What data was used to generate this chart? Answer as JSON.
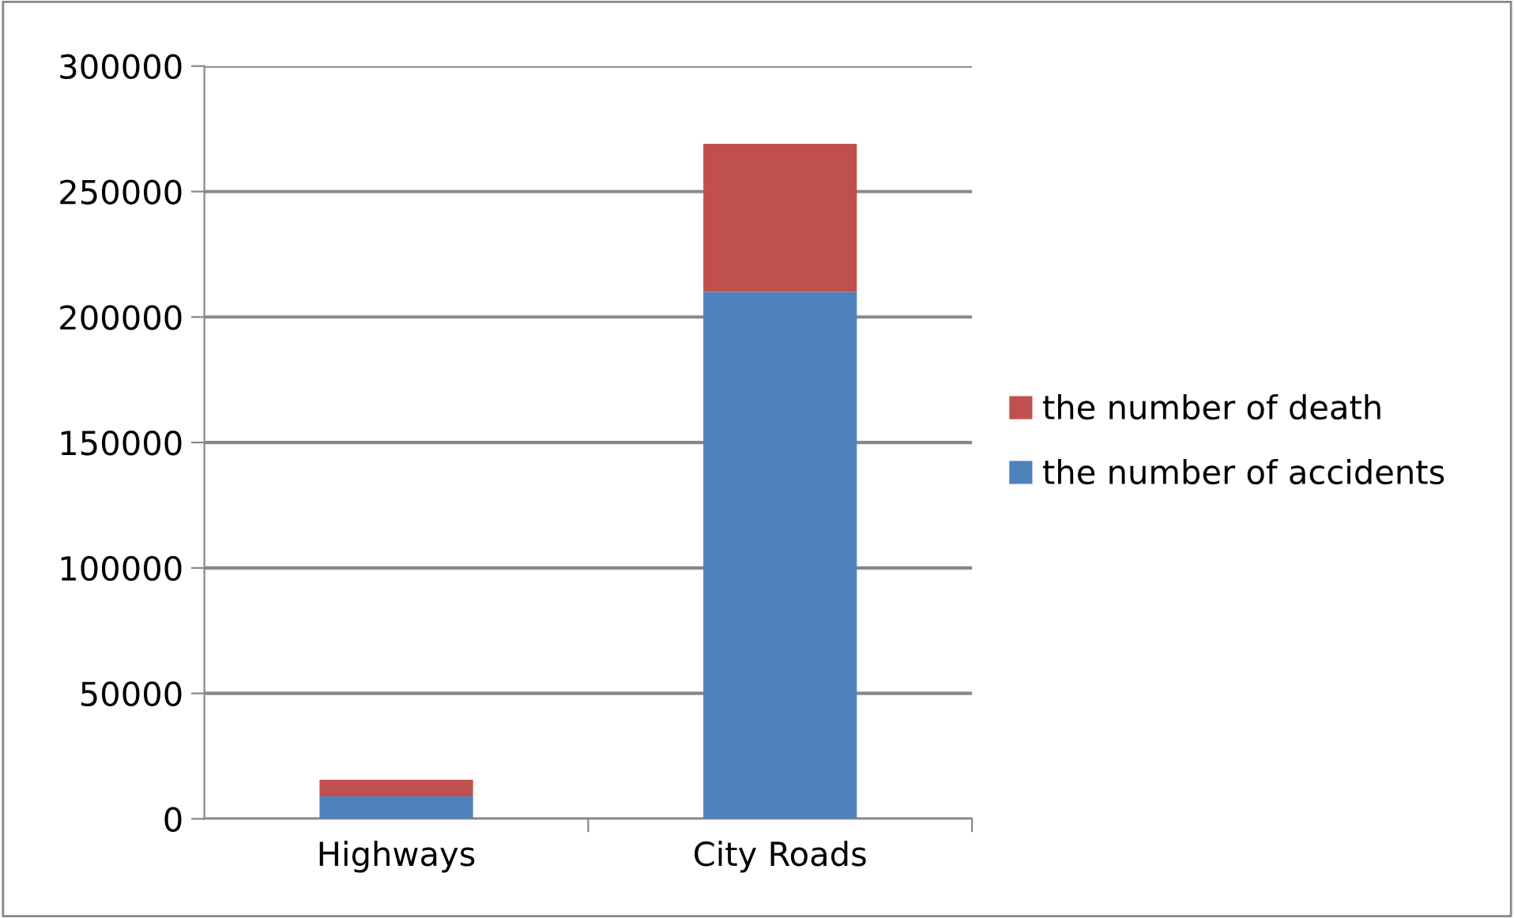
{
  "chart_data": {
    "type": "bar",
    "stacked": true,
    "categories": [
      "Highways",
      "City Roads"
    ],
    "series": [
      {
        "name": "the number of accidents",
        "color": "#4f81bd",
        "values": [
          9000,
          210000
        ]
      },
      {
        "name": "the number of death",
        "color": "#c0504d",
        "values": [
          6600,
          59000
        ]
      }
    ],
    "ylim": [
      0,
      300000
    ],
    "yticks": [
      0,
      50000,
      100000,
      150000,
      200000,
      250000,
      300000
    ],
    "grid": "y",
    "legend": "right"
  }
}
